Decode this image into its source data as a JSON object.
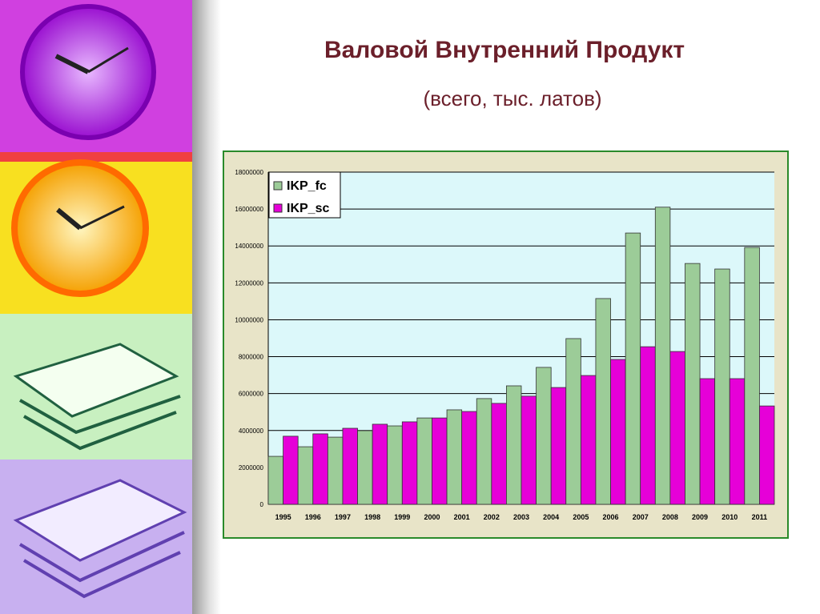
{
  "title": "Валовой Внутренний Продукт",
  "subtitle": "(всего, тыс. латов)",
  "chart_data": {
    "type": "bar",
    "categories": [
      "1995",
      "1996",
      "1997",
      "1998",
      "1999",
      "2000",
      "2001",
      "2002",
      "2003",
      "2004",
      "2005",
      "2006",
      "2007",
      "2008",
      "2009",
      "2010",
      "2011"
    ],
    "series": [
      {
        "name": "IKP_fc",
        "color": "#9ccc98",
        "values": [
          2600000,
          3120000,
          3640000,
          3990000,
          4250000,
          4680000,
          5120000,
          5730000,
          6420000,
          7420000,
          8980000,
          11150000,
          14700000,
          16100000,
          13050000,
          12750000,
          13920000
        ]
      },
      {
        "name": "IKP_sc",
        "color": "#e600d8",
        "values": [
          3690000,
          3820000,
          4120000,
          4340000,
          4470000,
          4680000,
          5030000,
          5470000,
          5860000,
          6330000,
          6980000,
          7850000,
          8540000,
          8280000,
          6810000,
          6810000,
          5330000
        ]
      }
    ],
    "ylim": [
      0,
      18000000
    ],
    "yticks": [
      0,
      2000000,
      4000000,
      6000000,
      8000000,
      10000000,
      12000000,
      14000000,
      16000000,
      18000000
    ],
    "grid": true,
    "legend": "top-left"
  }
}
